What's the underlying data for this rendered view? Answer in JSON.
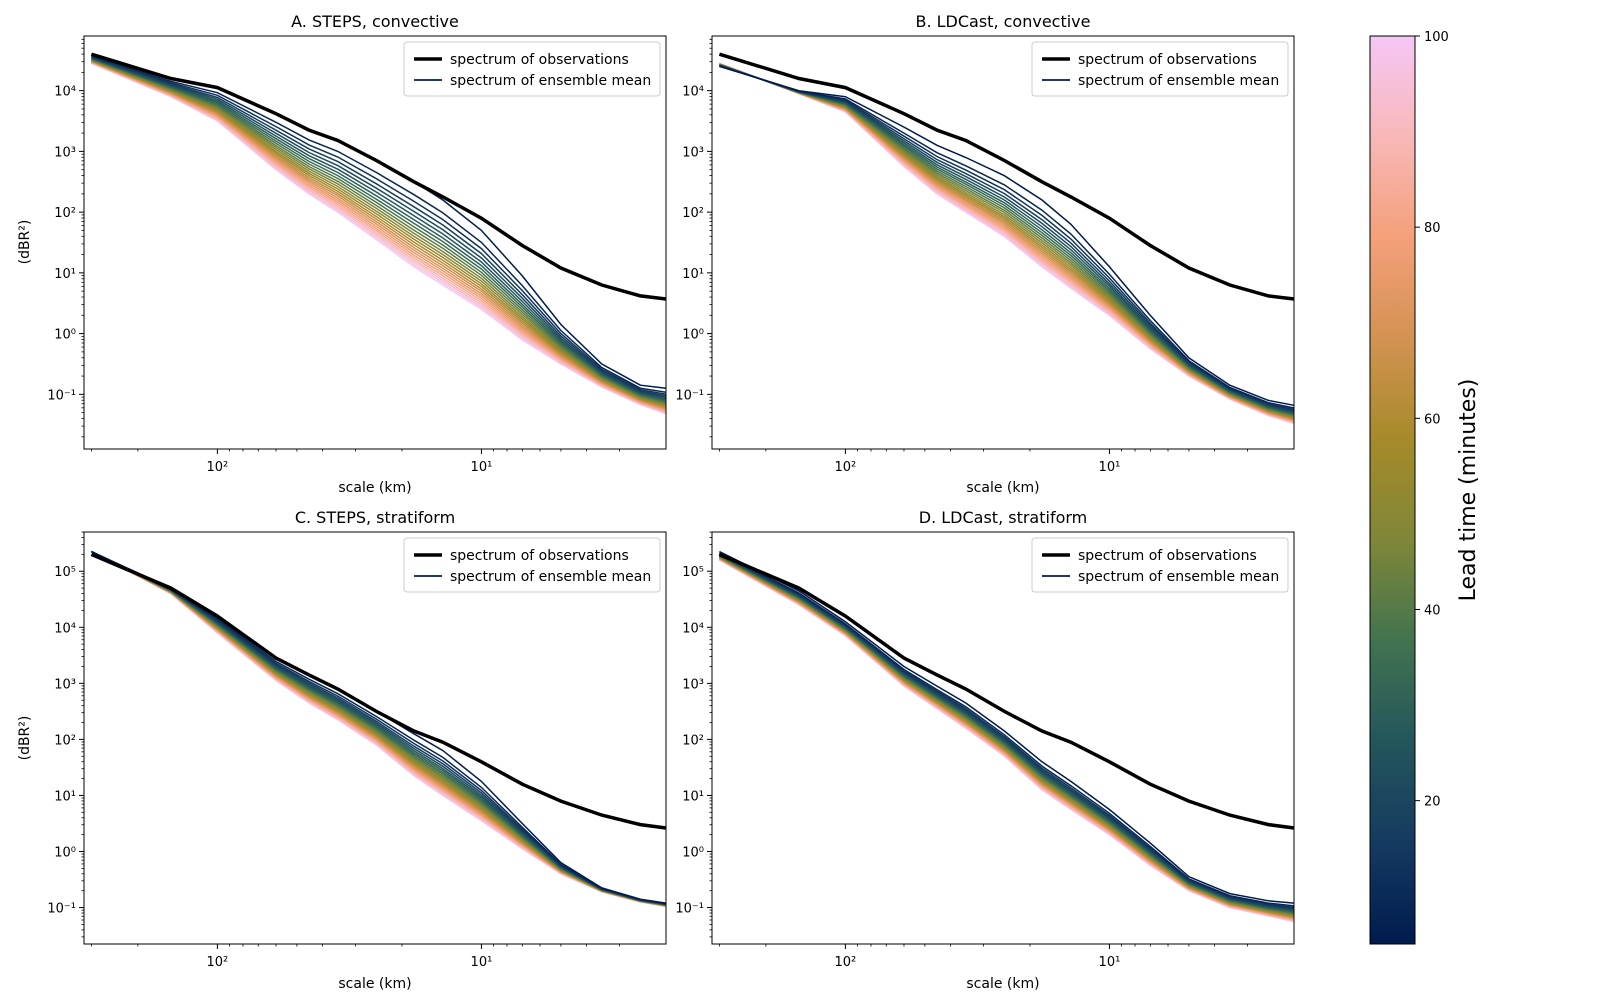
{
  "chart_data": [
    {
      "id": "A",
      "type": "line",
      "title": "A. STEPS, convective",
      "xlabel": "scale (km)",
      "ylabel": "(dBR²)",
      "x_axis": {
        "scale": "log",
        "inverted": true,
        "xlim": [
          320,
          2.0
        ],
        "major_ticks": [
          {
            "value": 100,
            "label": "10²"
          },
          {
            "value": 10,
            "label": "10¹"
          }
        ]
      },
      "y_axis": {
        "scale": "log",
        "ylim_log10": [
          -1.9,
          4.9
        ],
        "ticks": [
          {
            "exp": 4,
            "label": "10⁴"
          },
          {
            "exp": 3,
            "label": "10³"
          },
          {
            "exp": 2,
            "label": "10²"
          },
          {
            "exp": 1,
            "label": "10¹"
          },
          {
            "exp": 0,
            "label": "10⁰"
          },
          {
            "exp": -1,
            "label": "10⁻¹"
          }
        ]
      },
      "legend": {
        "position": "top-right",
        "entries": [
          "spectrum of observations",
          "spectrum of ensemble mean"
        ]
      },
      "series_scale_km": [
        300,
        150,
        100,
        60,
        45,
        35,
        25,
        18,
        14,
        10,
        7,
        5,
        3.5,
        2.5,
        2.0
      ],
      "observations_log10": [
        4.6,
        4.2,
        4.05,
        3.62,
        3.35,
        3.18,
        2.85,
        2.5,
        2.25,
        1.9,
        1.45,
        1.08,
        0.8,
        0.62,
        0.57
      ],
      "ensemble_lead_times_min": [
        5,
        100
      ],
      "ensemble_5min_log10": [
        4.6,
        4.2,
        4.05,
        3.62,
        3.35,
        3.18,
        2.85,
        2.5,
        2.2,
        1.7,
        0.95,
        0.15,
        -0.5,
        -0.85,
        -0.9
      ],
      "ensemble_100min_log10": [
        4.45,
        3.9,
        3.5,
        2.7,
        2.3,
        2.0,
        1.55,
        1.1,
        0.8,
        0.4,
        -0.1,
        -0.5,
        -0.88,
        -1.17,
        -1.32
      ]
    },
    {
      "id": "B",
      "type": "line",
      "title": "B. LDCast, convective",
      "xlabel": "scale (km)",
      "ylabel": "",
      "x_axis": {
        "scale": "log",
        "inverted": true,
        "xlim": [
          320,
          2.0
        ],
        "major_ticks": [
          {
            "value": 100,
            "label": "10²"
          },
          {
            "value": 10,
            "label": "10¹"
          }
        ]
      },
      "y_axis": {
        "scale": "log",
        "ylim_log10": [
          -1.9,
          4.9
        ],
        "ticks": [
          {
            "exp": 4,
            "label": "10⁴"
          },
          {
            "exp": 3,
            "label": "10³"
          },
          {
            "exp": 2,
            "label": "10²"
          },
          {
            "exp": 1,
            "label": "10¹"
          },
          {
            "exp": 0,
            "label": "10⁰"
          },
          {
            "exp": -1,
            "label": "10⁻¹"
          }
        ]
      },
      "legend": {
        "position": "top-right",
        "entries": [
          "spectrum of observations",
          "spectrum of ensemble mean"
        ]
      },
      "series_scale_km": [
        300,
        150,
        100,
        60,
        45,
        35,
        25,
        18,
        14,
        10,
        7,
        5,
        3.5,
        2.5,
        2.0
      ],
      "observations_log10": [
        4.6,
        4.2,
        4.05,
        3.62,
        3.35,
        3.18,
        2.85,
        2.5,
        2.25,
        1.9,
        1.45,
        1.08,
        0.8,
        0.62,
        0.57
      ],
      "ensemble_lead_times_min": [
        5,
        100
      ],
      "ensemble_5min_log10": [
        4.4,
        4.0,
        3.9,
        3.4,
        3.1,
        2.9,
        2.6,
        2.2,
        1.8,
        1.1,
        0.3,
        -0.4,
        -0.85,
        -1.1,
        -1.18
      ],
      "ensemble_100min_log10": [
        4.45,
        3.95,
        3.65,
        2.75,
        2.3,
        2.0,
        1.6,
        1.1,
        0.75,
        0.3,
        -0.25,
        -0.7,
        -1.08,
        -1.35,
        -1.48
      ]
    },
    {
      "id": "C",
      "type": "line",
      "title": "C. STEPS, stratiform",
      "xlabel": "scale (km)",
      "ylabel": "(dBR²)",
      "x_axis": {
        "scale": "log",
        "inverted": true,
        "xlim": [
          320,
          2.0
        ],
        "major_ticks": [
          {
            "value": 100,
            "label": "10²"
          },
          {
            "value": 10,
            "label": "10¹"
          }
        ]
      },
      "y_axis": {
        "scale": "log",
        "ylim_log10": [
          -1.65,
          5.7
        ],
        "ticks": [
          {
            "exp": 5,
            "label": "10⁵"
          },
          {
            "exp": 4,
            "label": "10⁴"
          },
          {
            "exp": 3,
            "label": "10³"
          },
          {
            "exp": 2,
            "label": "10²"
          },
          {
            "exp": 1,
            "label": "10¹"
          },
          {
            "exp": 0,
            "label": "10⁰"
          },
          {
            "exp": -1,
            "label": "10⁻¹"
          }
        ]
      },
      "legend": {
        "position": "top-right",
        "entries": [
          "spectrum of observations",
          "spectrum of ensemble mean"
        ]
      },
      "series_scale_km": [
        300,
        150,
        100,
        60,
        45,
        35,
        25,
        18,
        14,
        10,
        7,
        5,
        3.5,
        2.5,
        2.0
      ],
      "observations_log10": [
        5.3,
        4.7,
        4.2,
        3.45,
        3.15,
        2.9,
        2.5,
        2.15,
        1.95,
        1.6,
        1.2,
        0.9,
        0.65,
        0.48,
        0.42
      ],
      "ensemble_lead_times_min": [
        5,
        100
      ],
      "ensemble_5min_log10": [
        5.35,
        4.7,
        4.2,
        3.45,
        3.15,
        2.9,
        2.5,
        2.1,
        1.8,
        1.25,
        0.5,
        -0.2,
        -0.65,
        -0.85,
        -0.92
      ],
      "ensemble_100min_log10": [
        5.35,
        4.6,
        3.9,
        3.05,
        2.65,
        2.35,
        1.9,
        1.35,
        1.0,
        0.55,
        0.05,
        -0.4,
        -0.72,
        -0.9,
        -0.98
      ]
    },
    {
      "id": "D",
      "type": "line",
      "title": "D. LDCast, stratiform",
      "xlabel": "scale (km)",
      "ylabel": "",
      "x_axis": {
        "scale": "log",
        "inverted": true,
        "xlim": [
          320,
          2.0
        ],
        "major_ticks": [
          {
            "value": 100,
            "label": "10²"
          },
          {
            "value": 10,
            "label": "10¹"
          }
        ]
      },
      "y_axis": {
        "scale": "log",
        "ylim_log10": [
          -1.65,
          5.7
        ],
        "ticks": [
          {
            "exp": 5,
            "label": "10⁵"
          },
          {
            "exp": 4,
            "label": "10⁴"
          },
          {
            "exp": 3,
            "label": "10³"
          },
          {
            "exp": 2,
            "label": "10²"
          },
          {
            "exp": 1,
            "label": "10¹"
          },
          {
            "exp": 0,
            "label": "10⁰"
          },
          {
            "exp": -1,
            "label": "10⁻¹"
          }
        ]
      },
      "legend": {
        "position": "top-right",
        "entries": [
          "spectrum of observations",
          "spectrum of ensemble mean"
        ]
      },
      "series_scale_km": [
        300,
        150,
        100,
        60,
        45,
        35,
        25,
        18,
        14,
        10,
        7,
        5,
        3.5,
        2.5,
        2.0
      ],
      "observations_log10": [
        5.3,
        4.7,
        4.2,
        3.45,
        3.15,
        2.9,
        2.5,
        2.15,
        1.95,
        1.6,
        1.2,
        0.9,
        0.65,
        0.48,
        0.42
      ],
      "ensemble_lead_times_min": [
        5,
        100
      ],
      "ensemble_5min_log10": [
        5.35,
        4.65,
        4.1,
        3.3,
        2.95,
        2.65,
        2.15,
        1.6,
        1.25,
        0.75,
        0.15,
        -0.45,
        -0.75,
        -0.88,
        -0.92
      ],
      "ensemble_100min_log10": [
        5.2,
        4.4,
        3.85,
        2.95,
        2.55,
        2.2,
        1.7,
        1.1,
        0.75,
        0.3,
        -0.25,
        -0.7,
        -1.0,
        -1.15,
        -1.25
      ]
    }
  ],
  "colorbar": {
    "label": "Lead time (minutes)",
    "range": [
      5,
      100
    ],
    "ticks": [
      {
        "value": 20,
        "label": "20"
      },
      {
        "value": 40,
        "label": "40"
      },
      {
        "value": 60,
        "label": "60"
      },
      {
        "value": 80,
        "label": "80"
      },
      {
        "value": 100,
        "label": "100"
      }
    ],
    "colormap_stops": [
      "#001b4f",
      "#153a60",
      "#23565c",
      "#427350",
      "#7f8738",
      "#a68a2a",
      "#d39252",
      "#f4a07a",
      "#f8b8b8",
      "#f6c7f6"
    ]
  },
  "colors": {
    "observations": "#000000",
    "ensemble_mean": "#001b4f"
  }
}
